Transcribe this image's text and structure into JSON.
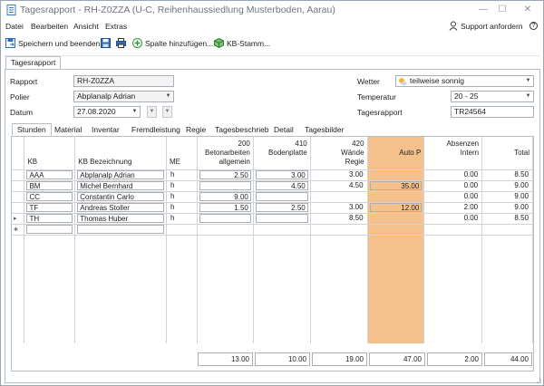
{
  "window": {
    "title": "Tagesrapport - RH-Z0ZZA (U-C, Reihenhaussiedlung Musterboden, Aarau)",
    "controls": [
      "—",
      "☐",
      "✕"
    ]
  },
  "menu": {
    "items": [
      "Datei",
      "Bearbeiten",
      "Ansicht",
      "Extras"
    ],
    "support_label": "Support anfordern",
    "help_label": "?"
  },
  "toolbar": {
    "save_close_label": "Speichern und beenden",
    "add_column_label": "Spalte hinzufügen...",
    "kb_stamm_label": "KB-Stamm..."
  },
  "outer_tab": "Tagesrapport",
  "form": {
    "rapport_label": "Rapport",
    "rapport_value": "RH-Z0ZZA",
    "polier_label": "Polier",
    "polier_value": "Abplanalp Adrian",
    "datum_label": "Datum",
    "datum_value": "27.08.2020",
    "wetter_label": "Wetter",
    "wetter_value": "teilweise sonnig",
    "temperatur_label": "Temperatur",
    "temperatur_value": "20 - 25",
    "tagesrapport_label": "Tagesrapport",
    "tagesrapport_value": "TR24564"
  },
  "tabs": [
    "Stunden",
    "Material",
    "Inventar",
    "Fremdleistung",
    "Regie",
    "Tagesbeschrieb",
    "Detail",
    "Tagesbilder"
  ],
  "grid": {
    "headers": {
      "kb": "KB",
      "bez": "KB Bezeichnung",
      "me": "ME",
      "c1": [
        "200",
        "Betonarbeiten",
        "allgemein"
      ],
      "c2": [
        "410",
        "Bodenplatte"
      ],
      "c3": [
        "420",
        "Wände",
        "Regie"
      ],
      "c4": [
        "Auto P"
      ],
      "c5": [
        "Absenzen",
        "Intern"
      ],
      "c6": [
        "Total"
      ]
    },
    "rows": [
      {
        "kb": "AAA",
        "bez": "Abplanalp Adrian",
        "me": "h",
        "c1": "2.50",
        "c2": "3.00",
        "c3": "3.00",
        "c4": "",
        "c5": "0.00",
        "c6": "8.50"
      },
      {
        "kb": "BM",
        "bez": "Michel Bernhard",
        "me": "h",
        "c1": "",
        "c2": "4.50",
        "c3": "4.50",
        "c4": "35.00",
        "c5": "0.00",
        "c6": "9.00"
      },
      {
        "kb": "CC",
        "bez": "Constantin Carlo",
        "me": "h",
        "c1": "9.00",
        "c2": "",
        "c3": "",
        "c4": "",
        "c5": "0.00",
        "c6": "9.00"
      },
      {
        "kb": "TF",
        "bez": "Andreas Stoller",
        "me": "h",
        "c1": "1.50",
        "c2": "2.50",
        "c3": "3.00",
        "c4": "12.00",
        "c5": "2.00",
        "c6": "9.00"
      },
      {
        "kb": "TH",
        "bez": "Thomas Huber",
        "me": "h",
        "c1": "",
        "c2": "",
        "c3": "8.50",
        "c4": "",
        "c5": "0.00",
        "c6": "8.50"
      }
    ],
    "totals": [
      "13.00",
      "10.00",
      "19.00",
      "47.00",
      "2.00",
      "44.00"
    ]
  },
  "colors": {
    "auto_column": "#f4c08c",
    "accent": "#2f6db5"
  }
}
